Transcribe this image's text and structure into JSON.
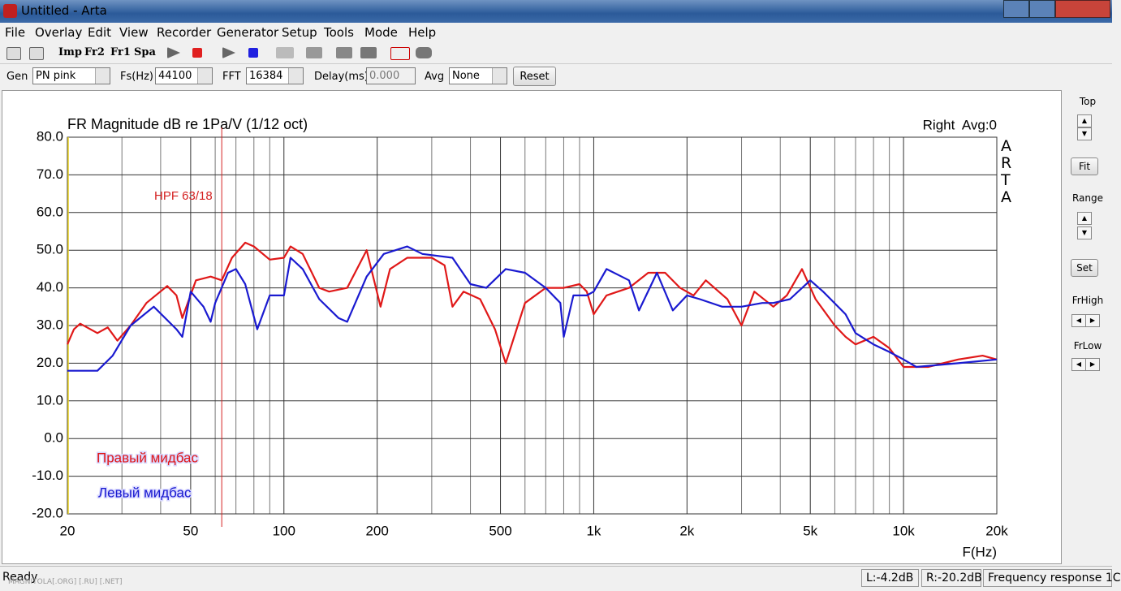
{
  "window": {
    "title": "Untitled - Arta"
  },
  "menu": [
    "File",
    "Overlay",
    "Edit",
    "View",
    "Recorder",
    "Generator",
    "Setup",
    "Tools",
    "Mode",
    "Help"
  ],
  "toolbar": {
    "buttons": [
      "Imp",
      "Fr2",
      "Fr1",
      "Spa"
    ]
  },
  "controls": {
    "gen_label": "Gen",
    "gen": "PN pink",
    "fs_label": "Fs(Hz)",
    "fs": "44100",
    "fft_label": "FFT",
    "fft": "16384",
    "delay_label": "Delay(ms)",
    "delay": "0.000",
    "avg_label": "Avg",
    "avg": "None",
    "reset": "Reset"
  },
  "side_panel": {
    "top": "Top",
    "fit": "Fit",
    "range": "Range",
    "set": "Set",
    "frhigh": "FrHigh",
    "frlow": "FrLow"
  },
  "status": {
    "ready": "Ready",
    "left": "L:-4.2dB",
    "right": "R:-20.2dB",
    "mode": "Frequency response 1C"
  },
  "watermark": "MAGNITOLA[.ORG] [.RU] [.NET]",
  "chart_data": {
    "type": "line",
    "title": "FR Magnitude dB re 1Pa/V (1/12 oct)",
    "subtitle": "Right  Avg:0",
    "brand": "ARTA",
    "xlabel": "F(Hz)",
    "xscale": "log",
    "xlim": [
      20,
      20000
    ],
    "ylim": [
      -20,
      80
    ],
    "xticks": [
      20,
      50,
      100,
      200,
      500,
      {
        "value": 1000,
        "label": "1k"
      },
      {
        "value": 2000,
        "label": "2k"
      },
      {
        "value": 5000,
        "label": "5k"
      },
      {
        "value": 10000,
        "label": "10k"
      },
      {
        "value": 20000,
        "label": "20k"
      }
    ],
    "xminor": [
      30,
      40,
      60,
      70,
      80,
      90,
      300,
      400,
      600,
      700,
      800,
      900,
      3000,
      4000,
      6000,
      7000,
      8000,
      9000
    ],
    "yticks": [
      {
        "value": 80,
        "label": "80.0"
      },
      {
        "value": 70,
        "label": "70.0"
      },
      {
        "value": 60,
        "label": "60.0"
      },
      {
        "value": 50,
        "label": "50.0"
      },
      {
        "value": 40,
        "label": "40.0"
      },
      {
        "value": 30,
        "label": "30.0"
      },
      {
        "value": 20,
        "label": "20.0"
      },
      {
        "value": 10,
        "label": "10.0"
      },
      {
        "value": 0,
        "label": "0.0"
      },
      {
        "value": -10,
        "label": "-10.0"
      },
      {
        "value": -20,
        "label": "-20.0"
      }
    ],
    "grid": true,
    "annotation": {
      "text": "HPF 63/18",
      "x": 63,
      "color": "#d42020"
    },
    "series": [
      {
        "name": "Правый мидбас",
        "color": "#e01818",
        "x": [
          20,
          21,
          22,
          25,
          27,
          29,
          32,
          36,
          42,
          45,
          47,
          52,
          58,
          63,
          68,
          75,
          80,
          90,
          100,
          105,
          115,
          130,
          140,
          160,
          185,
          205,
          220,
          250,
          300,
          330,
          350,
          380,
          430,
          480,
          520,
          600,
          700,
          800,
          900,
          950,
          1000,
          1100,
          1300,
          1500,
          1700,
          1900,
          2100,
          2300,
          2700,
          3000,
          3300,
          3800,
          4200,
          4700,
          5200,
          6000,
          6500,
          7000,
          8000,
          9000,
          10000,
          12000,
          15000,
          18000,
          20000
        ],
        "values": [
          25,
          29,
          30.5,
          28,
          29.5,
          26,
          30,
          36,
          40.5,
          38,
          32,
          42,
          43,
          42,
          48,
          52,
          51,
          47.5,
          48,
          51,
          49,
          40,
          39,
          40,
          50,
          35,
          45,
          48,
          48,
          46,
          35,
          39,
          37,
          29,
          20,
          36,
          40,
          40,
          41,
          39,
          33,
          38,
          40,
          44,
          44,
          40,
          38,
          42,
          37,
          30,
          39,
          35,
          38,
          45,
          37,
          30,
          27,
          25,
          27,
          24,
          19,
          19,
          21,
          22,
          21
        ]
      },
      {
        "name": "Левый мидбас",
        "color": "#1a1ad0",
        "x": [
          20,
          25,
          28,
          32,
          38,
          45,
          47,
          50,
          55,
          58,
          60,
          66,
          70,
          75,
          82,
          90,
          100,
          105,
          115,
          130,
          150,
          160,
          185,
          210,
          250,
          280,
          350,
          400,
          450,
          520,
          600,
          700,
          780,
          800,
          860,
          950,
          1000,
          1100,
          1300,
          1400,
          1600,
          1800,
          2000,
          2200,
          2600,
          3000,
          3500,
          3800,
          4300,
          5000,
          5500,
          6500,
          7000,
          8000,
          9000,
          10000,
          11000,
          15000,
          20000
        ],
        "values": [
          18,
          18,
          22,
          30,
          35,
          29,
          27,
          39,
          35,
          31,
          36,
          44,
          45,
          41,
          29,
          38,
          38,
          48,
          45,
          37,
          32,
          31,
          43,
          49,
          51,
          49,
          48,
          41,
          40,
          45,
          44,
          40,
          36,
          27,
          38,
          38,
          39,
          45,
          42,
          34,
          44,
          34,
          38,
          37,
          35,
          35,
          36,
          36,
          37,
          42,
          39,
          33,
          28,
          25,
          23,
          21,
          19,
          20,
          21
        ]
      }
    ]
  }
}
